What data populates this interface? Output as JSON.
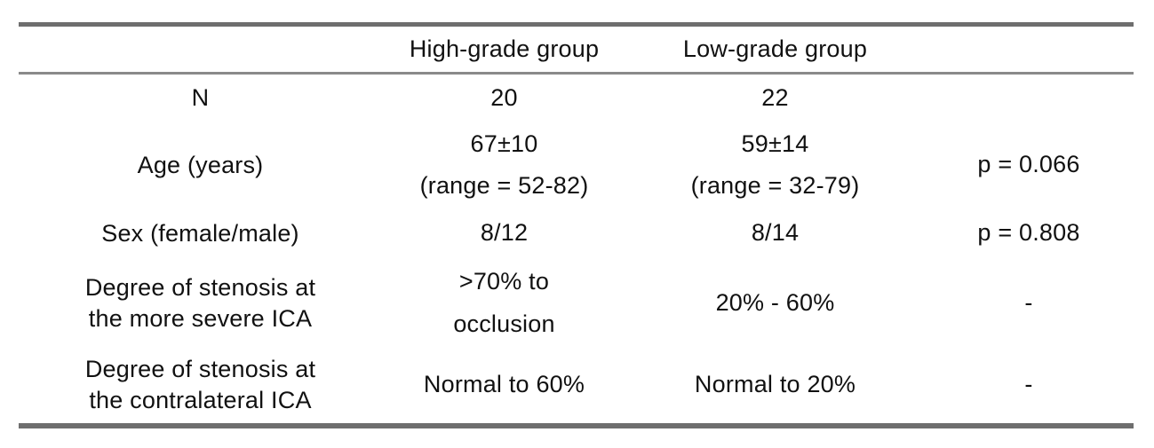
{
  "colors": {
    "rule_thick": "#6e6e6e",
    "rule_thin": "#8a8a8a",
    "text": "#111111",
    "background": "#ffffff"
  },
  "table": {
    "columns": [
      "",
      "High-grade group",
      "Low-grade group",
      ""
    ],
    "rows": [
      {
        "label": "N",
        "high": "20",
        "low": "22",
        "p": ""
      },
      {
        "label": "Age (years)",
        "high": "67±10\n(range = 52-82)",
        "low": "59±14\n(range = 32-79)",
        "p": "p = 0.066"
      },
      {
        "label": "Sex (female/male)",
        "high": "8/12",
        "low": "8/14",
        "p": "p = 0.808"
      },
      {
        "label": "Degree of stenosis at\nthe more severe ICA",
        "high": ">70% to\nocclusion",
        "low": "20% - 60%",
        "p": "-"
      },
      {
        "label": "Degree of stenosis at\nthe contralateral ICA",
        "high": "Normal to 60%",
        "low": "Normal to 20%",
        "p": "-"
      }
    ]
  }
}
